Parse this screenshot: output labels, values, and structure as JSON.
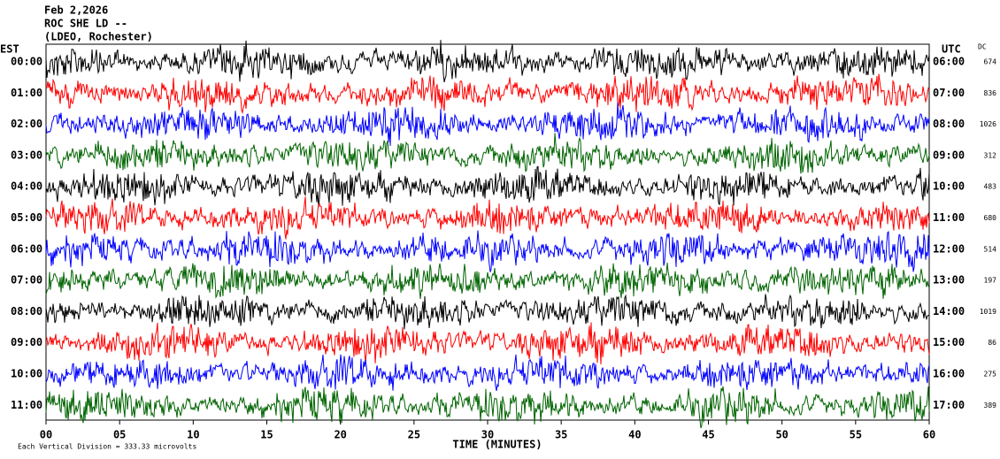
{
  "header": {
    "lines": [
      "Feb 2,2026",
      "ROC SHE LD --",
      "(LDEO, Rochester)"
    ]
  },
  "left_title": "EST",
  "right_title": "UTC",
  "dc_title": "DC",
  "left_labels": [
    "00:00",
    "01:00",
    "02:00",
    "03:00",
    "04:00",
    "05:00",
    "06:00",
    "07:00",
    "08:00",
    "09:00",
    "10:00",
    "11:00"
  ],
  "right_labels": [
    "06:00",
    "07:00",
    "08:00",
    "09:00",
    "10:00",
    "11:00",
    "12:00",
    "13:00",
    "14:00",
    "15:00",
    "16:00",
    "17:00"
  ],
  "dc_values": [
    "674",
    "836",
    "1026",
    "312",
    "483",
    "680",
    "514",
    "197",
    "1019",
    "86",
    "275",
    "389"
  ],
  "x_ticks": [
    "00",
    "05",
    "10",
    "15",
    "20",
    "25",
    "30",
    "35",
    "40",
    "45",
    "50",
    "55",
    "60"
  ],
  "x_axis_label": "TIME (MINUTES)",
  "footer": "Each Vertical Division =  333.33 microvolts"
}
